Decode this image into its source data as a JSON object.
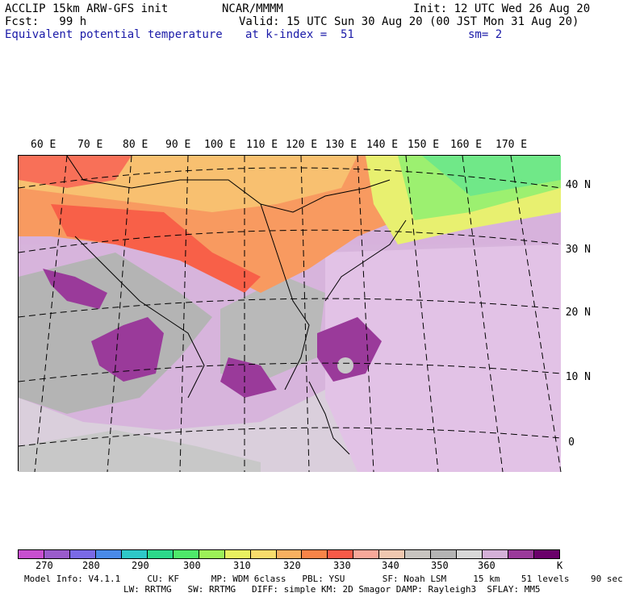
{
  "header": {
    "model": "ACCLIP 15km ARW-GFS init",
    "org": "NCAR/MMMM",
    "init": "Init: 12 UTC Wed 26 Aug 20",
    "fcst": "Fcst:   99 h",
    "valid": "Valid: 15 UTC Sun 30 Aug 20 (00 JST Mon 31 Aug 20)",
    "field": "Equivalent potential temperature",
    "level": "at k-index =  51",
    "smooth": "sm= 2"
  },
  "lon_labels": [
    "60 E",
    "70 E",
    "80 E",
    "90 E",
    "100 E",
    "110 E",
    "120 E",
    "130 E",
    "140 E",
    "150 E",
    "160 E",
    "170 E"
  ],
  "lat_labels": [
    "40 N",
    "30 N",
    "20 N",
    "10 N",
    "0"
  ],
  "colorbar": {
    "colors": [
      "#c84fd0",
      "#9a5ccc",
      "#7a6ae6",
      "#4a8ae8",
      "#2ec8c8",
      "#2cd88a",
      "#4ee86a",
      "#9cf058",
      "#e8f060",
      "#f8dc6c",
      "#f8b060",
      "#f88448",
      "#f85a48",
      "#f8a89a",
      "#f0c8b0",
      "#c8c4c0",
      "#b4b4b4",
      "#d8d8d8",
      "#d4b0d8",
      "#9a3a9a",
      "#6a006a"
    ],
    "labels": [
      "270",
      "280",
      "290",
      "300",
      "310",
      "320",
      "330",
      "340",
      "350",
      "360",
      "K"
    ]
  },
  "footer": {
    "line1": "Model Info: V4.1.1     CU: KF      MP: WDM 6class   PBL: YSU       SF: Noah LSM     15 km    51 levels    90 sec",
    "line2": "LW: RRTMG   SW: RRTMG   DIFF: simple KM: 2D Smagor DAMP: Rayleigh3  SFLAY: MM5"
  }
}
